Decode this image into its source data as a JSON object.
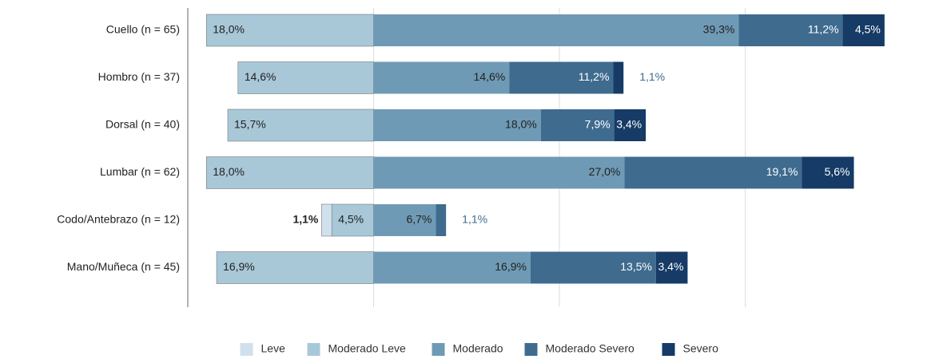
{
  "chart_data": {
    "type": "diverging_bar",
    "categories": [
      "Cuello (n = 65)",
      "Hombro (n = 37)",
      "Dorsal (n = 40)",
      "Lumbar (n = 62)",
      "Codo/Antebrazo (n = 12)",
      "Mano/Muñeca (n = 45)"
    ],
    "xlim": [
      -20,
      60
    ],
    "xticks": [
      -20,
      0,
      20,
      40
    ],
    "grid": true,
    "legend": "bottom",
    "series": [
      {
        "name": "Leve",
        "color": "#d0e1ed",
        "side": "left",
        "values": [
          0,
          0,
          0,
          0,
          1.1,
          0
        ],
        "value_labels": [
          null,
          null,
          null,
          null,
          "1,1%",
          null
        ]
      },
      {
        "name": "Moderado Leve",
        "color": "#a8c8d8",
        "side": "left",
        "values": [
          18.0,
          14.6,
          15.7,
          18.0,
          4.5,
          16.9
        ],
        "value_labels": [
          "18,0%",
          "14,6%",
          "15,7%",
          "18,0%",
          "4,5%",
          "16,9%"
        ]
      },
      {
        "name": "Moderado",
        "color": "#6f9ab5",
        "side": "right",
        "values": [
          39.3,
          14.6,
          18.0,
          27.0,
          6.7,
          16.9
        ],
        "value_labels": [
          "39,3%",
          "14,6%",
          "18,0%",
          "27,0%",
          "6,7%",
          "16,9%"
        ]
      },
      {
        "name": "Moderado Severo",
        "color": "#3f6b8f",
        "side": "right",
        "values": [
          11.2,
          11.2,
          7.9,
          19.1,
          1.1,
          13.5
        ],
        "value_labels": [
          "11,2%",
          "11,2%",
          "7,9%",
          "19,1%",
          "1,1%",
          "13,5%"
        ]
      },
      {
        "name": "Severo",
        "color": "#153b66",
        "side": "right",
        "values": [
          4.5,
          1.1,
          3.4,
          5.6,
          0,
          3.4
        ],
        "value_labels": [
          "4,5%",
          "1,1%",
          "3,4%",
          "5,6%",
          null,
          "3,4%"
        ]
      }
    ]
  }
}
